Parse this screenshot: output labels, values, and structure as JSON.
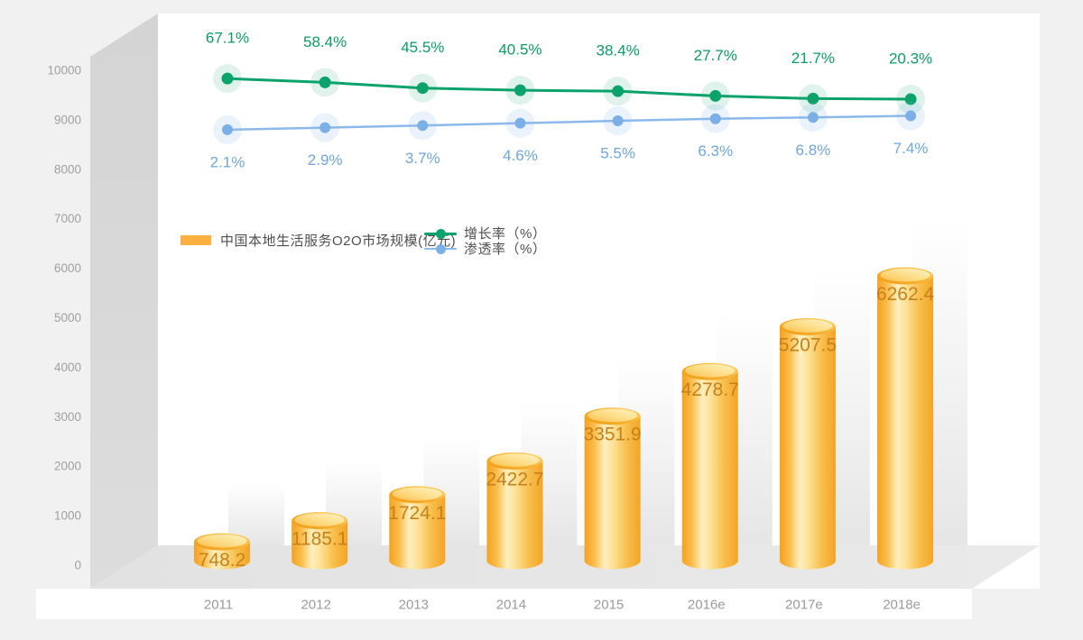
{
  "legend": {
    "bar": {
      "label": "中国本地生活服务O2O市场规模(亿元)",
      "color": "#FBB040"
    },
    "growth": {
      "label": "增长率（%）",
      "color": "#0BA26C"
    },
    "penetration": {
      "label": "渗透率（%）",
      "color": "#7CAFE6"
    }
  },
  "style": {
    "page_background": "#f1f1f1",
    "plot_background": "#ffffff",
    "wall_color": "#d6d6d6",
    "floor_color": "#e6e6e6",
    "bar_main_color": "#F9B234",
    "bar_value_text_color": "#C6811A",
    "growth_line_color": "#0BA26C",
    "growth_text_color": "#0A9E64",
    "penetration_line_color": "#7CAFE6",
    "penetration_text_color": "#6FA6DE",
    "axis_text_color": "#A0A0A0"
  },
  "chart_data": {
    "type": "bar",
    "categories": [
      "2011",
      "2012",
      "2013",
      "2014",
      "2015",
      "2016e",
      "2017e",
      "2018e"
    ],
    "series": [
      {
        "name": "中国本地生活服务O2O市场规模(亿元)",
        "type": "bar",
        "values": [
          748.2,
          1185.1,
          1724.1,
          2422.7,
          3351.9,
          4278.7,
          5207.5,
          6262.4
        ]
      },
      {
        "name": "增长率（%）",
        "type": "line",
        "unit": "%",
        "values": [
          67.1,
          58.4,
          45.5,
          40.5,
          38.4,
          27.7,
          21.7,
          20.3
        ]
      },
      {
        "name": "渗透率（%）",
        "type": "line",
        "unit": "%",
        "values": [
          2.1,
          2.9,
          3.7,
          4.6,
          5.5,
          6.3,
          6.8,
          7.4
        ]
      }
    ],
    "y_axis": {
      "min": 0,
      "max": 10000,
      "ticks": [
        0,
        1000,
        2000,
        3000,
        4000,
        5000,
        6000,
        7000,
        8000,
        9000,
        10000
      ]
    },
    "grid": false,
    "legend_position": "inside-top-left",
    "style_3d": true
  }
}
